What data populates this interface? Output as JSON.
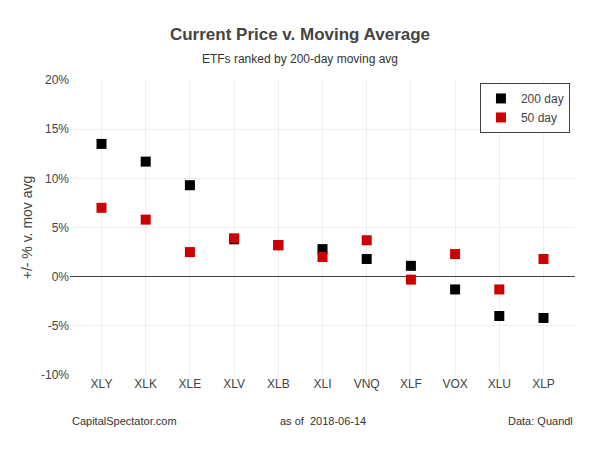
{
  "chart_data": {
    "type": "scatter",
    "title": "Current Price v. Moving Average",
    "subtitle": "ETFs ranked by 200-day moving avg",
    "categories": [
      "XLY",
      "XLK",
      "XLE",
      "XLV",
      "XLB",
      "XLI",
      "VNQ",
      "XLF",
      "VOX",
      "XLU",
      "XLP"
    ],
    "series": [
      {
        "name": "200 day",
        "color": "#000000",
        "values": [
          13.5,
          11.7,
          9.3,
          3.8,
          3.2,
          2.8,
          1.8,
          1.1,
          -1.3,
          -4.0,
          -4.2
        ]
      },
      {
        "name": "50 day",
        "color": "#cc0000",
        "values": [
          7.0,
          5.8,
          2.5,
          3.9,
          3.2,
          2.0,
          3.7,
          -0.3,
          2.3,
          -1.3,
          1.8
        ]
      }
    ],
    "marker": "square",
    "ylabel": "+/- % v. mov avg",
    "ylim": [
      -10,
      20
    ],
    "yticks": [
      {
        "value": -10,
        "label": "-10%"
      },
      {
        "value": -5,
        "label": "-5%"
      },
      {
        "value": 0,
        "label": "0%"
      },
      {
        "value": 5,
        "label": "5%"
      },
      {
        "value": 10,
        "label": "10%"
      },
      {
        "value": 15,
        "label": "15%"
      },
      {
        "value": 20,
        "label": "20%"
      }
    ],
    "grid": true,
    "legend": "upper right",
    "annotations": [
      "CapitalSpectator.com",
      "as of  2018-06-14",
      "Data: Quandl"
    ]
  }
}
